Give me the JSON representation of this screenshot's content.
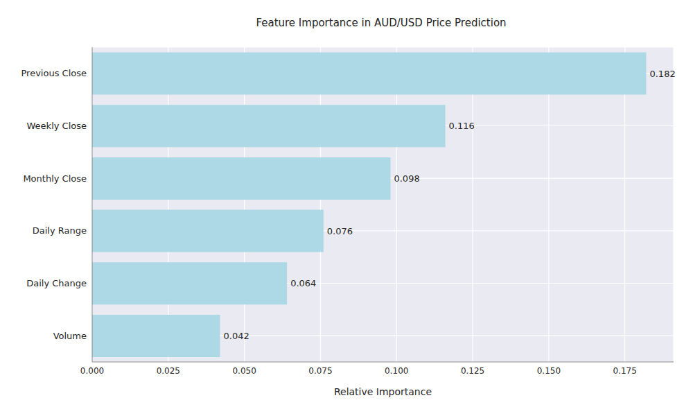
{
  "chart_data": {
    "type": "bar",
    "title": "Feature Importance in AUD/USD Price Prediction",
    "x_label": "Relative Importance",
    "categories": [
      "Previous Close",
      "Weekly Close",
      "Monthly Close",
      "Daily Range",
      "Daily Change",
      "Volume"
    ],
    "values": [
      0.182,
      0.116,
      0.098,
      0.076,
      0.064,
      0.042
    ],
    "color": "#add8e6",
    "orientation": "horizontal",
    "xlim": [
      0,
      0.191
    ],
    "xticks": [
      {
        "value": 0,
        "label": "0.000"
      },
      0.025,
      {
        "value": 0.05,
        "label": "0.050"
      },
      0.075,
      {
        "value": 0.1,
        "label": "0.100"
      },
      0.125,
      {
        "value": 0.15,
        "label": "0.150"
      },
      0.175
    ],
    "grid": true,
    "data_labels": true
  }
}
